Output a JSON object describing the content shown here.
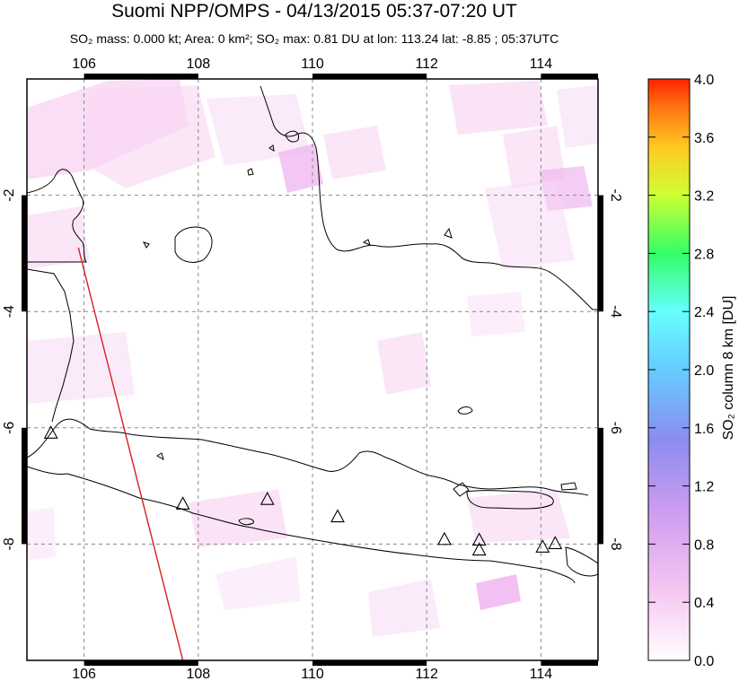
{
  "header": {
    "title": "Suomi NPP/OMPS - 04/13/2015 05:37-07:20 UT",
    "subtitle": "SO₂ mass: 0.000 kt; Area: 0 km²; SO₂ max: 0.81 DU at lon: 113.24 lat: -8.85 ; 05:37UTC"
  },
  "map": {
    "lon_range": [
      105,
      115
    ],
    "lat_range": [
      -10,
      0
    ],
    "lon_ticks": [
      "106",
      "108",
      "110",
      "112",
      "114"
    ],
    "lat_ticks": [
      "-2",
      "-4",
      "-6",
      "-8"
    ],
    "lon_tick_values": [
      106,
      108,
      110,
      112,
      114
    ],
    "lat_tick_values": [
      -2,
      -4,
      -6,
      -8
    ],
    "grid": "dashed",
    "volcano_marker": "open triangle",
    "volcanoes": [
      {
        "lon": 105.42,
        "lat": -6.1
      },
      {
        "lon": 107.73,
        "lat": -7.32
      },
      {
        "lon": 109.21,
        "lat": -7.24
      },
      {
        "lon": 110.44,
        "lat": -7.54
      },
      {
        "lon": 112.31,
        "lat": -7.93
      },
      {
        "lon": 112.92,
        "lat": -7.94
      },
      {
        "lon": 112.92,
        "lat": -8.11
      },
      {
        "lon": 114.03,
        "lat": -8.06
      },
      {
        "lon": 114.25,
        "lat": -8.0
      }
    ],
    "orbit_track": [
      {
        "lon": 105.9,
        "lat": -2.9
      },
      {
        "lon": 107.73,
        "lat": -10.0
      }
    ],
    "colors": {
      "coastline": "#000000",
      "track": "#d42020",
      "grid": "#888888",
      "so2_low": "#f8d4f4",
      "so2_mid": "#f2a8f0"
    }
  },
  "colorbar": {
    "label": "SO₂ column 8 km [DU]",
    "ticks": [
      "4.0",
      "3.6",
      "3.2",
      "2.8",
      "2.4",
      "2.0",
      "1.6",
      "1.2",
      "0.8",
      "0.4",
      "0.0"
    ],
    "tick_values": [
      4.0,
      3.6,
      3.2,
      2.8,
      2.4,
      2.0,
      1.6,
      1.2,
      0.8,
      0.4,
      0.0
    ],
    "range": [
      0.0,
      4.0
    ],
    "colors": [
      "#ffffff",
      "#f2a6f0",
      "#8c8cf0",
      "#66ffff",
      "#33ff66",
      "#ffff33",
      "#ff8800",
      "#ff2200"
    ]
  }
}
